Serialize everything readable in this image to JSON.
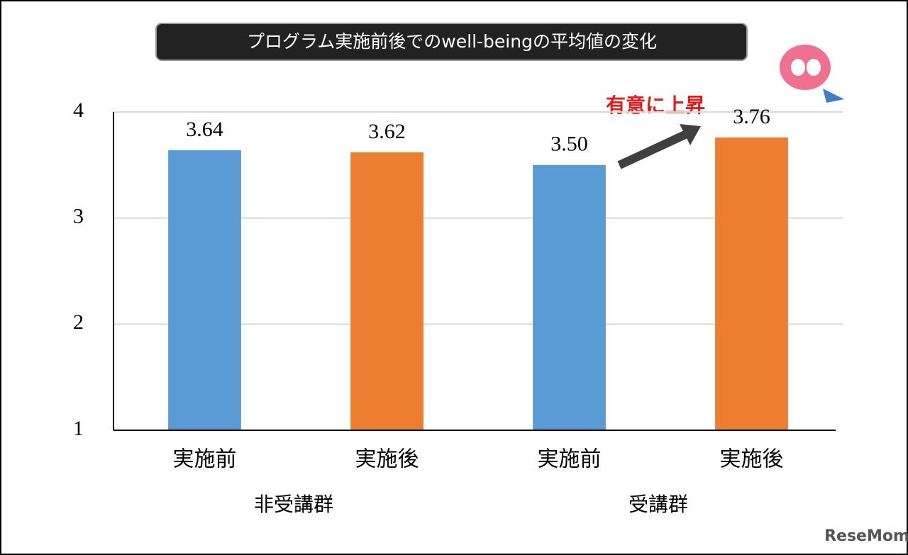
{
  "chart_data": {
    "type": "bar",
    "title": "プログラム実施前後でのwell-beingの平均値の変化",
    "categories": [
      "実施前",
      "実施後",
      "実施前",
      "実施後"
    ],
    "groups": [
      "非受講群",
      "受講群"
    ],
    "values": [
      3.64,
      3.62,
      3.5,
      3.76
    ],
    "value_labels": [
      "3.64",
      "3.62",
      "3.50",
      "3.76"
    ],
    "colors": [
      "#5b9bd5",
      "#ed7d31",
      "#5b9bd5",
      "#ed7d31"
    ],
    "ylim": [
      1,
      4
    ],
    "yticks": [
      1,
      2,
      3,
      4
    ],
    "grid": true,
    "annotation": "有意に上昇",
    "watermark": "ReseMom"
  }
}
